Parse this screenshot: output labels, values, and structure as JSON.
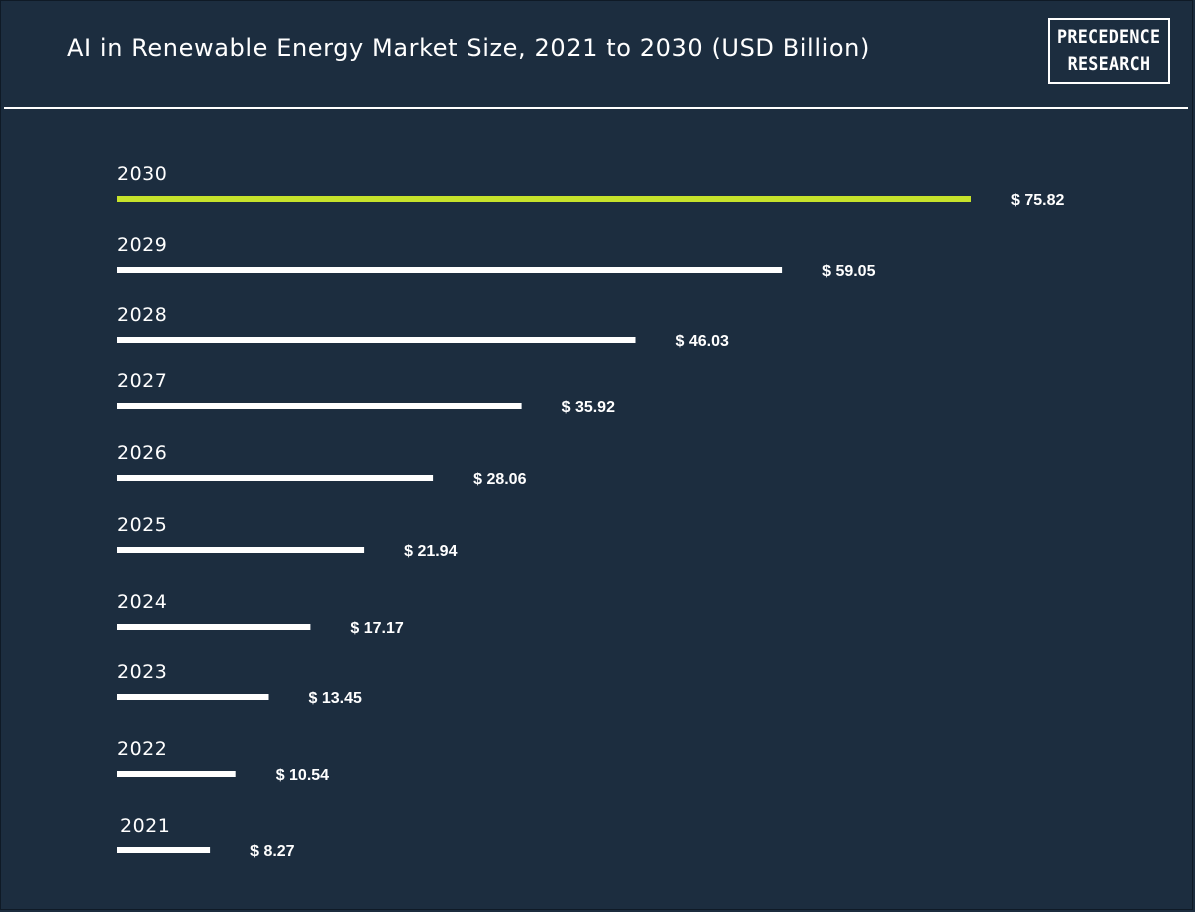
{
  "header": {
    "title": "AI in Renewable Energy Market Size, 2021 to 2030 (USD Billion)",
    "logo_line1": "PRECEDENCE",
    "logo_line2": "RESEARCH"
  },
  "colors": {
    "background": "#1c2d3f",
    "bar_default": "#ffffff",
    "bar_highlight": "#c6e22b",
    "text": "#ffffff"
  },
  "chart_data": {
    "type": "bar",
    "orientation": "horizontal",
    "title": "AI in Renewable Energy Market Size, 2021 to 2030 (USD Billion)",
    "categories": [
      "2030",
      "2029",
      "2028",
      "2027",
      "2026",
      "2025",
      "2024",
      "2023",
      "2022",
      "2021"
    ],
    "values": [
      75.82,
      59.05,
      46.03,
      35.92,
      28.06,
      21.94,
      17.17,
      13.45,
      10.54,
      8.27
    ],
    "value_labels": [
      "$ 75.82",
      "$ 59.05",
      "$ 46.03",
      "$ 35.92",
      "$ 28.06",
      "$ 21.94",
      "$ 17.17",
      "$ 13.45",
      "$ 10.54",
      "$ 8.27"
    ],
    "highlight_category": "2030",
    "xlabel": "",
    "ylabel": "",
    "grid": false,
    "legend": "none"
  }
}
